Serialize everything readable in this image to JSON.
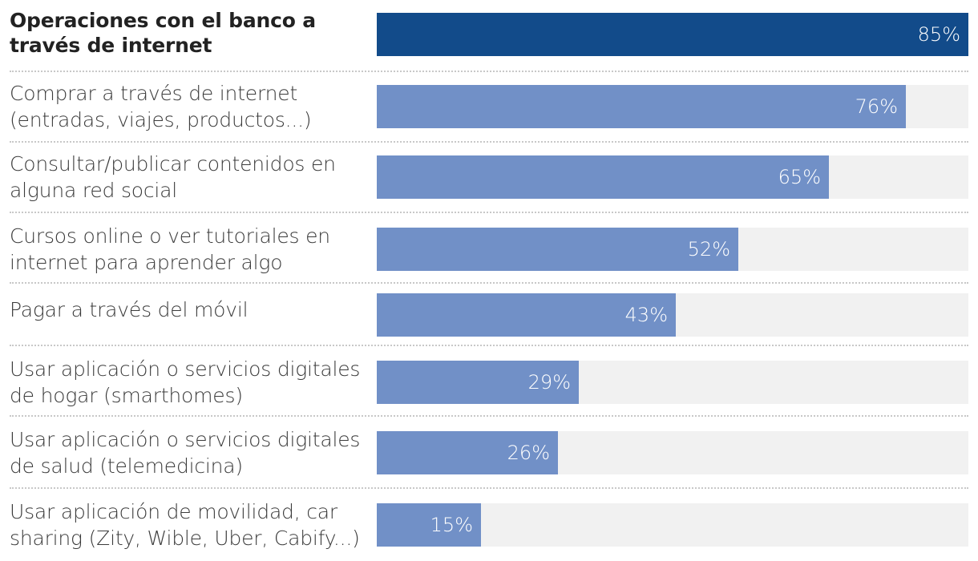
{
  "chart_data": {
    "type": "bar",
    "orientation": "horizontal",
    "unit": "%",
    "xlim": [
      0,
      85
    ],
    "categories": [
      "Operaciones con el banco a\ntravés de internet",
      "Comprar a través de internet\n(entradas, viajes, productos...)",
      "Consultar/publicar contenidos en\nalguna red social",
      "Cursos online o ver tutoriales en\ninternet para aprender algo",
      "Pagar a través del móvil",
      "Usar aplicación o servicios digitales\nde hogar (smarthomes)",
      "Usar aplicación o servicios digitales\nde salud (telemedicina)",
      "Usar aplicación de movilidad, car\nsharing (Zity, Wible, Uber, Cabify...)"
    ],
    "values": [
      85,
      76,
      65,
      52,
      43,
      29,
      26,
      15
    ],
    "value_labels": [
      "85%",
      "76%",
      "65%",
      "52%",
      "43%",
      "29%",
      "26%",
      "15%"
    ],
    "highlighted_index": 0
  },
  "colors": {
    "highlight_bar": "#124b8a",
    "bar": "#7190c7",
    "track": "#f1f1f1",
    "value_text": "#ffffff"
  }
}
